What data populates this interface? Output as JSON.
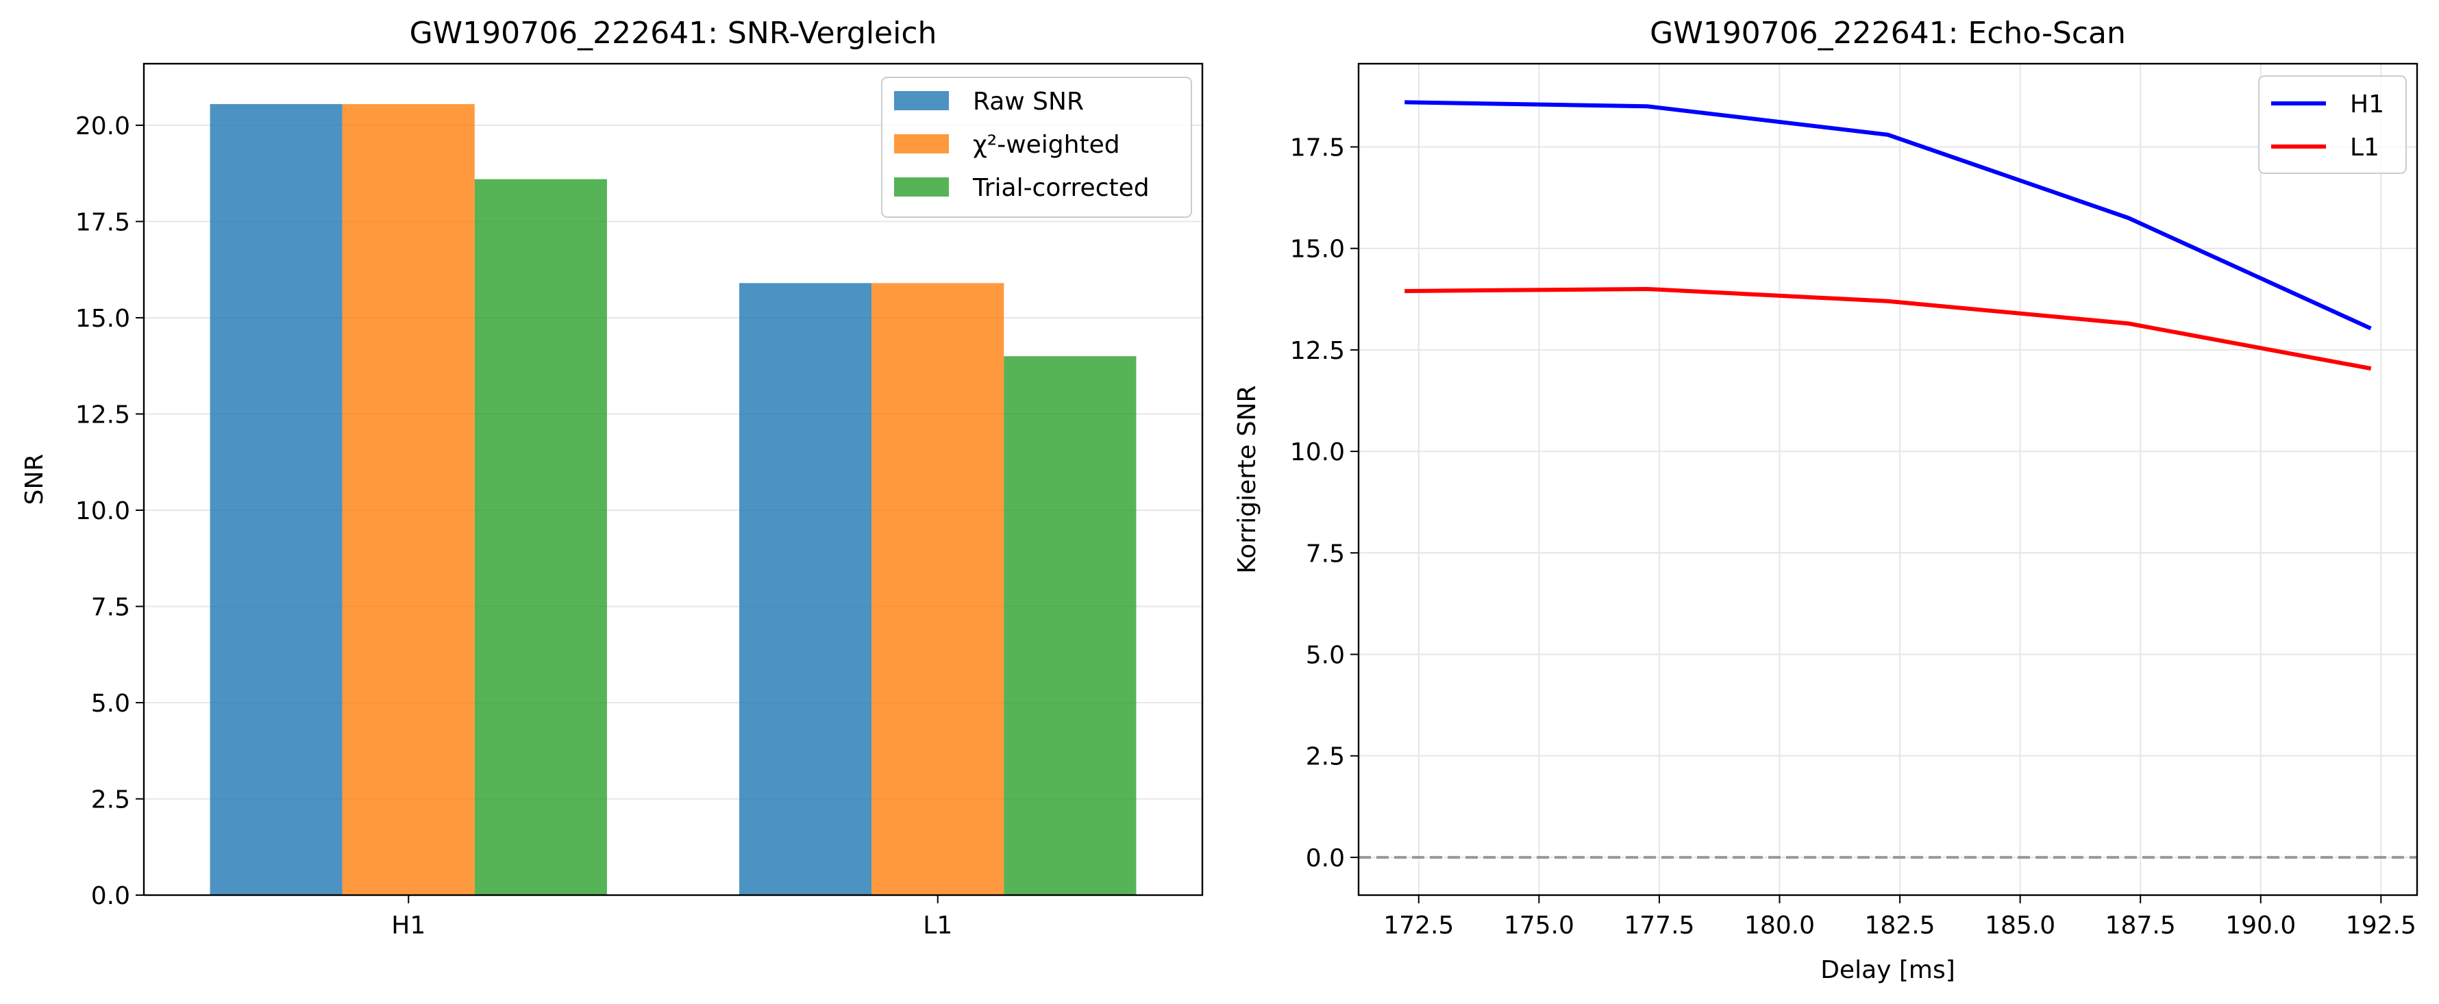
{
  "chart_data": [
    {
      "type": "bar",
      "title": "GW190706_222641: SNR-Vergleich",
      "xlabel": "",
      "ylabel": "SNR",
      "categories": [
        "H1",
        "L1"
      ],
      "ylim": [
        0,
        21.6
      ],
      "yticks": [
        0.0,
        2.5,
        5.0,
        7.5,
        10.0,
        12.5,
        15.0,
        17.5,
        20.0
      ],
      "ytick_labels": [
        "0.0",
        "2.5",
        "5.0",
        "7.5",
        "10.0",
        "12.5",
        "15.0",
        "17.5",
        "20.0"
      ],
      "grid": "y",
      "legend_position": "top-right",
      "series": [
        {
          "name": "Raw SNR",
          "color": "#1f77b4",
          "values": [
            20.55,
            15.9
          ]
        },
        {
          "name": "χ²-weighted",
          "color": "#ff7f0e",
          "values": [
            20.55,
            15.9
          ]
        },
        {
          "name": "Trial-corrected",
          "color": "#2ca02c",
          "values": [
            18.6,
            14.0
          ]
        }
      ]
    },
    {
      "type": "line",
      "title": "GW190706_222641: Echo-Scan",
      "xlabel": "Delay [ms]",
      "ylabel": "Korrigierte SNR",
      "x": [
        172.25,
        177.25,
        182.25,
        187.25,
        192.25
      ],
      "xlim": [
        171.25,
        193.25
      ],
      "ylim": [
        -0.93,
        19.55
      ],
      "xticks": [
        172.5,
        175.0,
        177.5,
        180.0,
        182.5,
        185.0,
        187.5,
        190.0,
        192.5
      ],
      "xtick_labels": [
        "172.5",
        "175.0",
        "177.5",
        "180.0",
        "182.5",
        "185.0",
        "187.5",
        "190.0",
        "192.5"
      ],
      "yticks": [
        0.0,
        2.5,
        5.0,
        7.5,
        10.0,
        12.5,
        15.0,
        17.5
      ],
      "ytick_labels": [
        "0.0",
        "2.5",
        "5.0",
        "7.5",
        "10.0",
        "12.5",
        "15.0",
        "17.5"
      ],
      "grid": "both",
      "legend_position": "top-right",
      "reference_line": {
        "y": 0,
        "style": "dashed",
        "color": "#999999"
      },
      "series": [
        {
          "name": "H1",
          "color": "#0000ff",
          "values": [
            18.6,
            18.5,
            17.8,
            15.75,
            13.05
          ]
        },
        {
          "name": "L1",
          "color": "#ff0000",
          "values": [
            13.95,
            14.0,
            13.7,
            13.15,
            12.05
          ]
        }
      ]
    }
  ]
}
